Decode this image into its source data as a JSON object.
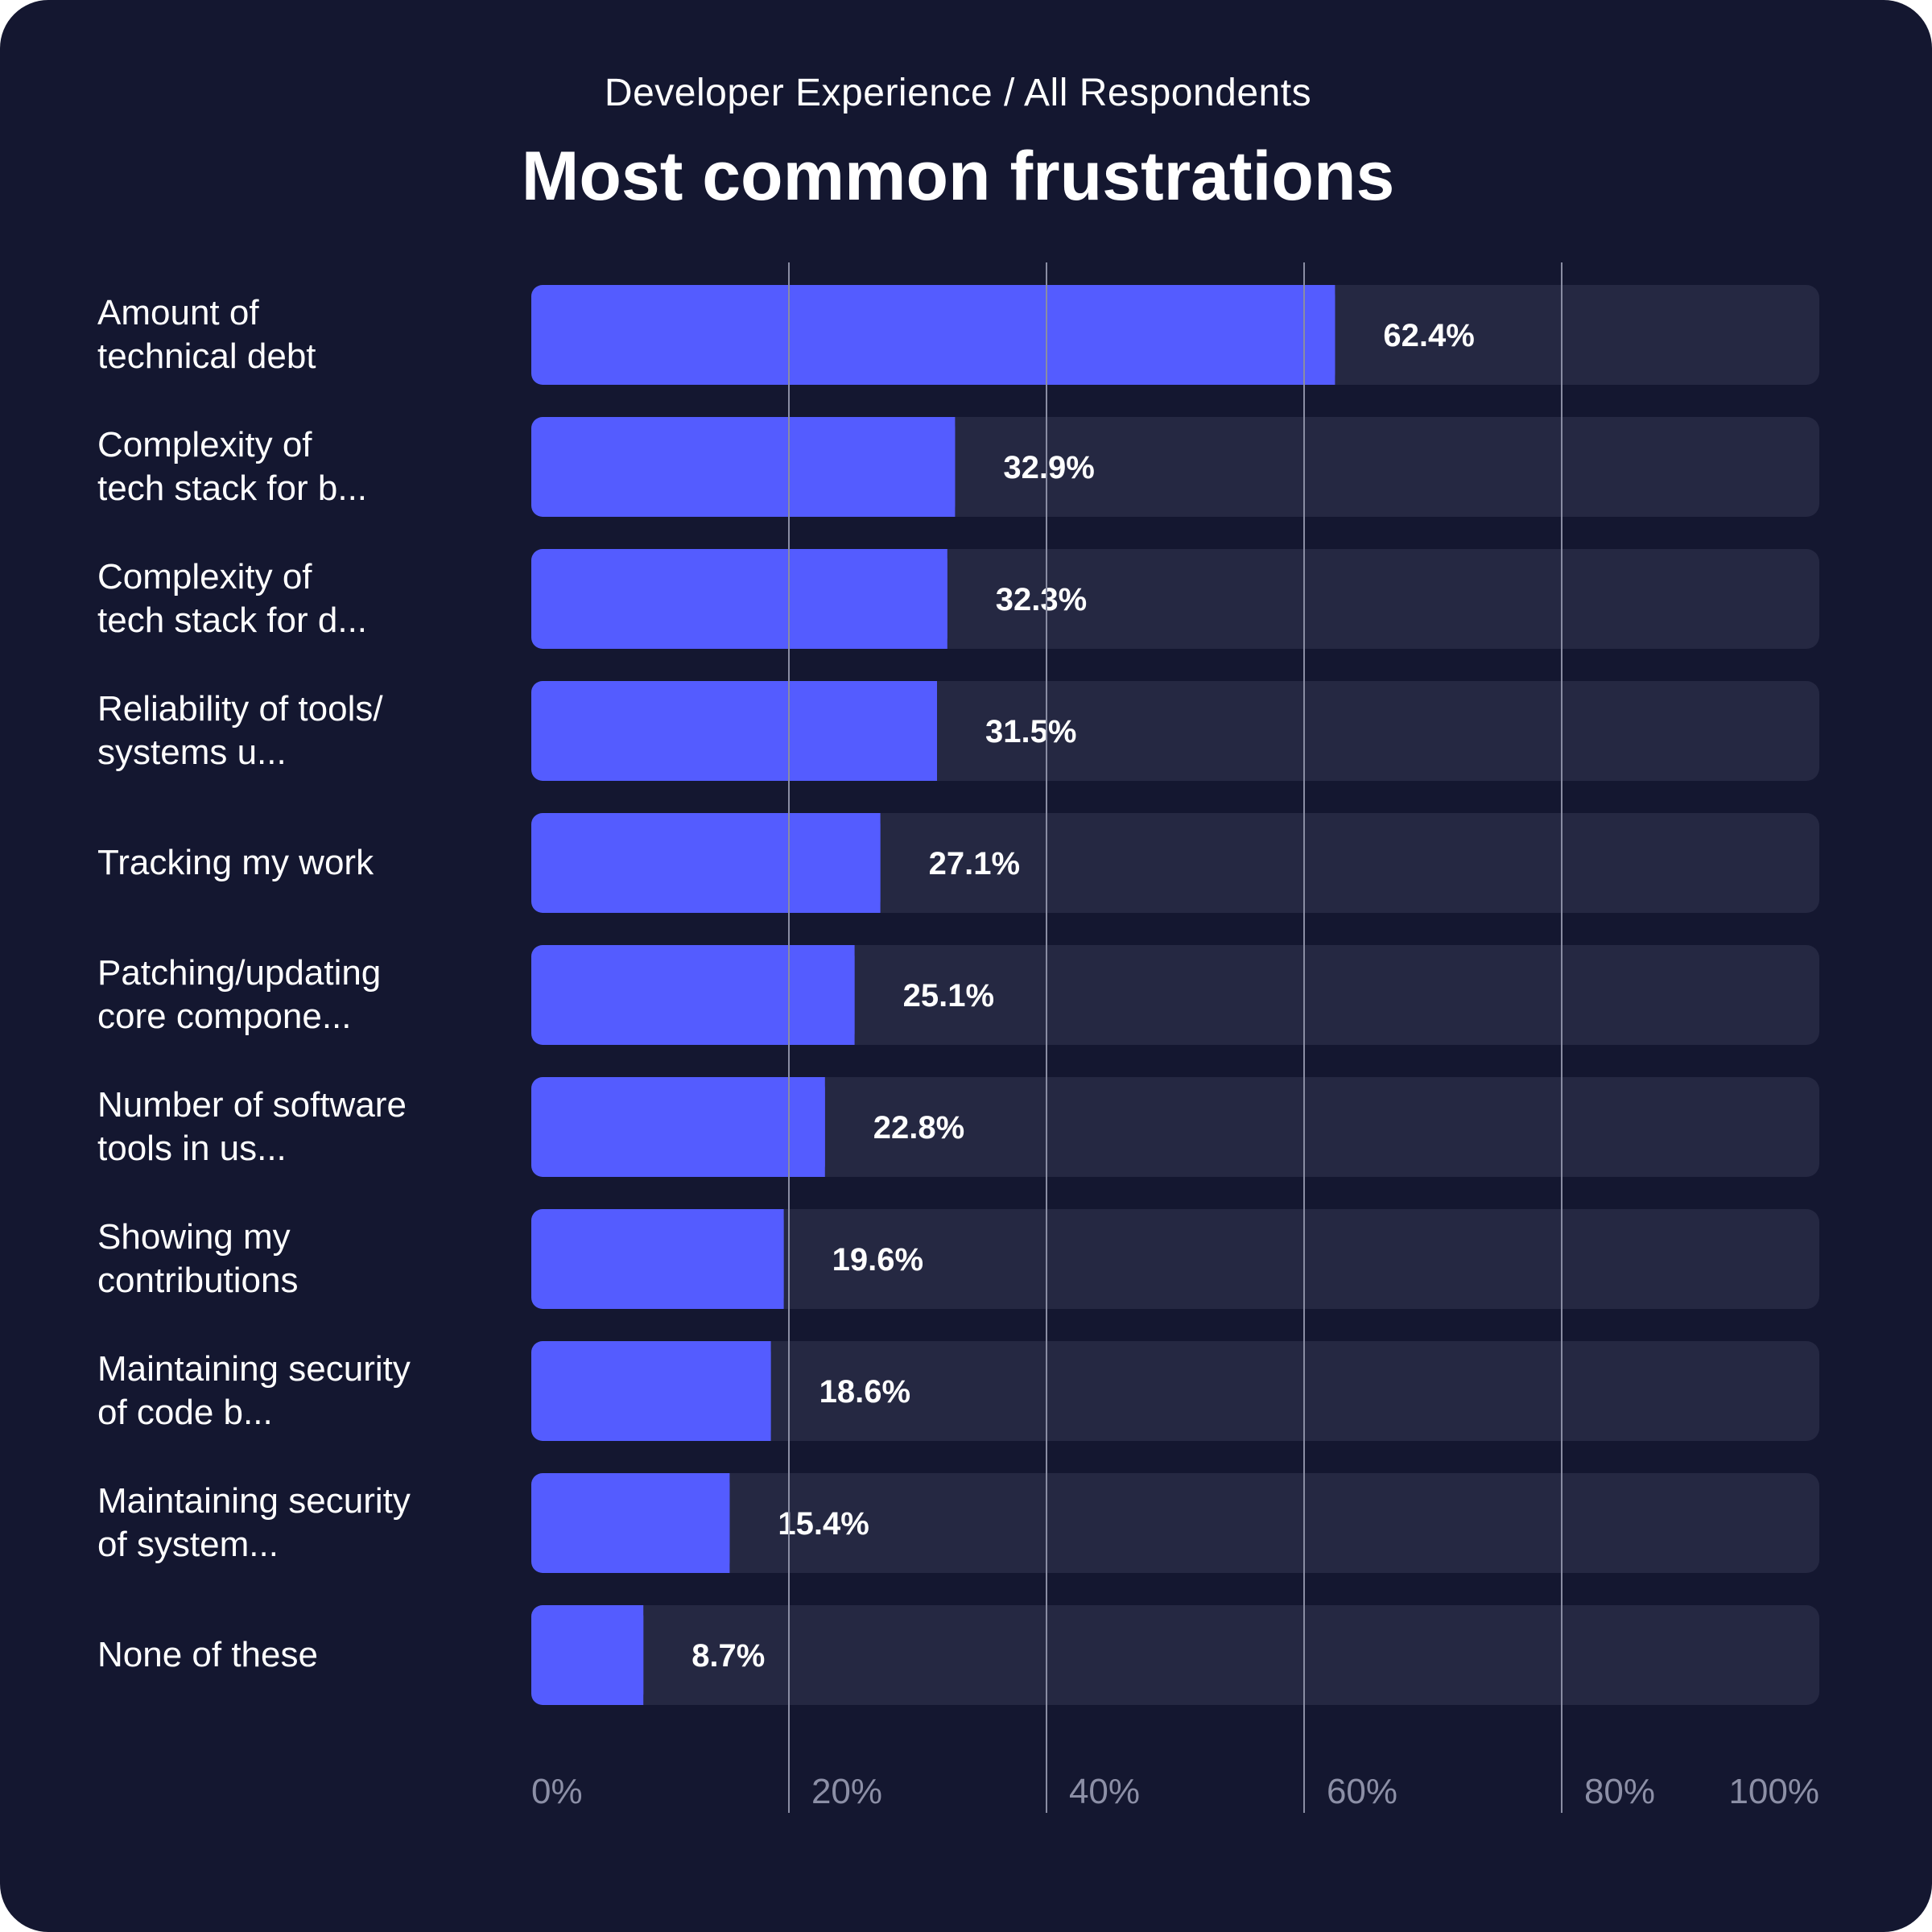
{
  "header": {
    "subtitle": "Developer Experience / All Respondents",
    "title": "Most common frustrations"
  },
  "colors": {
    "background": "#141730",
    "track": "#252842",
    "bar": "#545cff",
    "gridline": "#8a8da3",
    "tick_text": "#8c8fa6"
  },
  "chart_data": {
    "type": "bar",
    "orientation": "horizontal",
    "title": "Most common frustrations",
    "subtitle": "Developer Experience / All Respondents",
    "categories": [
      "Amount of\ntechnical debt",
      "Complexity of\ntech stack for b...",
      "Complexity of\ntech stack for d...",
      "Reliability of tools/\nsystems u...",
      "Tracking my work",
      "Patching/updating\ncore compone...",
      "Number of software\ntools in us...",
      "Showing my\ncontributions",
      "Maintaining security\nof code b...",
      "Maintaining security\nof system...",
      "None of these"
    ],
    "values": [
      62.4,
      32.9,
      32.3,
      31.5,
      27.1,
      25.1,
      22.8,
      19.6,
      18.6,
      15.4,
      8.7
    ],
    "value_labels": [
      "62.4%",
      "32.9%",
      "32.3%",
      "31.5%",
      "27.1%",
      "25.1%",
      "22.8%",
      "19.6%",
      "18.6%",
      "15.4%",
      "8.7%"
    ],
    "xlim": [
      0,
      100
    ],
    "x_ticks": [
      0,
      20,
      40,
      60,
      80,
      100
    ],
    "x_tick_labels": [
      "0%",
      "20%",
      "40%",
      "60%",
      "80%",
      "100%"
    ],
    "grid": true,
    "legend": "none"
  }
}
